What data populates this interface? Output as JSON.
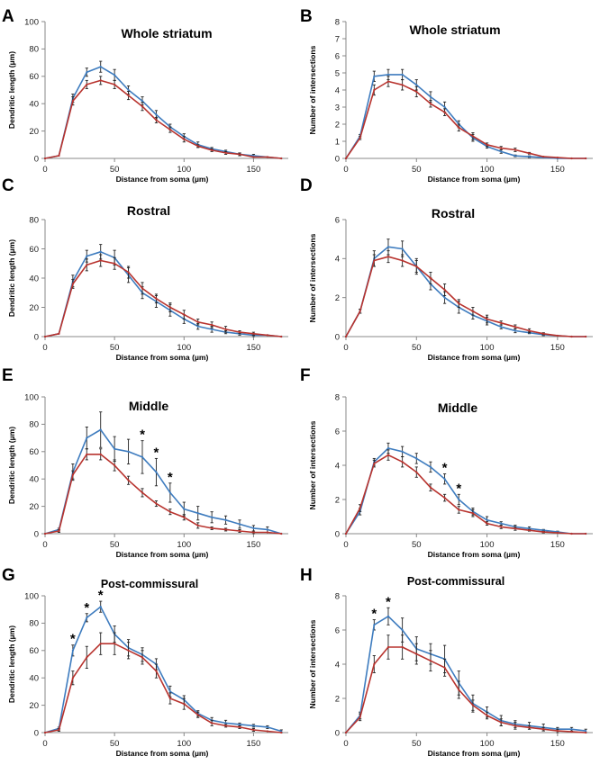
{
  "colors": {
    "blue": "#3e7cbf",
    "red": "#b8332e"
  },
  "chart_data": [
    {
      "letter": "A",
      "type": "line",
      "title": "Whole striatum",
      "xlabel": "Distance from soma (µm)",
      "ylabel": "Dendritic length (µm)",
      "xlim": [
        0,
        175
      ],
      "ylim": [
        0,
        100
      ],
      "xticks": [
        0,
        50,
        100,
        150
      ],
      "yticks": [
        0,
        20,
        40,
        60,
        80,
        100
      ],
      "x": [
        0,
        10,
        20,
        30,
        40,
        50,
        60,
        70,
        80,
        90,
        100,
        110,
        120,
        130,
        140,
        150,
        160,
        170
      ],
      "series": [
        {
          "name": "blue",
          "values": [
            0,
            2,
            44,
            63,
            67,
            61,
            50,
            42,
            32,
            23,
            16,
            10,
            7,
            5,
            3,
            2,
            1,
            0
          ],
          "errors": [
            0,
            0,
            3,
            3,
            4,
            4,
            3,
            3,
            3,
            2,
            2,
            2,
            1,
            1,
            1,
            1,
            0,
            0
          ]
        },
        {
          "name": "red",
          "values": [
            0,
            2,
            42,
            54,
            57,
            54,
            46,
            38,
            28,
            21,
            14,
            9,
            6,
            4,
            3,
            1,
            1,
            0
          ],
          "errors": [
            0,
            0,
            3,
            3,
            3,
            3,
            3,
            3,
            2,
            2,
            2,
            1,
            1,
            1,
            1,
            0,
            0,
            0
          ]
        }
      ],
      "stars": []
    },
    {
      "letter": "B",
      "type": "line",
      "title": "Whole  striatum",
      "xlabel": "Distance from soma (µm)",
      "ylabel": "Number of intersections",
      "xlim": [
        0,
        175
      ],
      "ylim": [
        0,
        8
      ],
      "xticks": [
        0,
        50,
        100,
        150
      ],
      "yticks": [
        0,
        1,
        2,
        3,
        4,
        5,
        6,
        7,
        8
      ],
      "x": [
        0,
        10,
        20,
        30,
        40,
        50,
        60,
        70,
        80,
        90,
        100,
        110,
        120,
        130,
        140,
        150,
        160,
        170
      ],
      "series": [
        {
          "name": "blue",
          "values": [
            0,
            1.3,
            4.8,
            4.9,
            4.9,
            4.3,
            3.6,
            3.0,
            2.0,
            1.2,
            0.7,
            0.4,
            0.15,
            0.1,
            0.05,
            0,
            0,
            0
          ],
          "errors": [
            0,
            0.1,
            0.3,
            0.3,
            0.3,
            0.3,
            0.3,
            0.3,
            0.2,
            0.2,
            0.1,
            0.1,
            0.05,
            0.05,
            0,
            0,
            0,
            0
          ]
        },
        {
          "name": "red",
          "values": [
            0,
            1.2,
            4.0,
            4.5,
            4.3,
            3.9,
            3.2,
            2.7,
            1.8,
            1.3,
            0.8,
            0.6,
            0.5,
            0.3,
            0.1,
            0.05,
            0,
            0
          ],
          "errors": [
            0,
            0.1,
            0.3,
            0.3,
            0.3,
            0.3,
            0.2,
            0.2,
            0.2,
            0.2,
            0.1,
            0.1,
            0.1,
            0.05,
            0,
            0,
            0,
            0
          ]
        }
      ],
      "stars": []
    },
    {
      "letter": "C",
      "type": "line",
      "title": "Rostral",
      "xlabel": "Distance from soma (µm)",
      "ylabel": "Dendritic length (µm)",
      "xlim": [
        0,
        175
      ],
      "ylim": [
        0,
        80
      ],
      "xticks": [
        0,
        50,
        100,
        150
      ],
      "yticks": [
        0,
        20,
        40,
        60,
        80
      ],
      "x": [
        0,
        10,
        20,
        30,
        40,
        50,
        60,
        70,
        80,
        90,
        100,
        110,
        120,
        130,
        140,
        150,
        160,
        170
      ],
      "series": [
        {
          "name": "blue",
          "values": [
            0,
            2,
            38,
            55,
            58,
            54,
            42,
            30,
            24,
            18,
            12,
            7,
            5,
            3,
            2,
            1,
            1,
            0
          ],
          "errors": [
            0,
            0,
            4,
            4,
            5,
            5,
            5,
            4,
            4,
            4,
            3,
            2,
            2,
            1,
            1,
            1,
            0,
            0
          ]
        },
        {
          "name": "red",
          "values": [
            0,
            2,
            36,
            49,
            52,
            50,
            44,
            33,
            26,
            20,
            15,
            10,
            8,
            5,
            3,
            2,
            1,
            0
          ],
          "errors": [
            0,
            0,
            3,
            4,
            4,
            4,
            4,
            4,
            3,
            3,
            3,
            2,
            2,
            2,
            1,
            1,
            0,
            0
          ]
        }
      ],
      "stars": []
    },
    {
      "letter": "D",
      "type": "line",
      "title": "Rostral",
      "xlabel": "Distance from soma (µm)",
      "ylabel": "Number of intersections",
      "xlim": [
        0,
        175
      ],
      "ylim": [
        0,
        6
      ],
      "xticks": [
        0,
        50,
        100,
        150
      ],
      "yticks": [
        0,
        2,
        4,
        6
      ],
      "x": [
        0,
        10,
        20,
        30,
        40,
        50,
        60,
        70,
        80,
        90,
        100,
        110,
        120,
        130,
        140,
        150,
        160,
        170
      ],
      "series": [
        {
          "name": "blue",
          "values": [
            0,
            1.3,
            4.0,
            4.6,
            4.5,
            3.6,
            2.7,
            2.0,
            1.5,
            1.1,
            0.8,
            0.5,
            0.3,
            0.2,
            0.1,
            0.05,
            0,
            0
          ],
          "errors": [
            0,
            0.1,
            0.4,
            0.4,
            0.4,
            0.4,
            0.3,
            0.3,
            0.3,
            0.2,
            0.2,
            0.1,
            0.1,
            0.05,
            0.05,
            0,
            0,
            0
          ]
        },
        {
          "name": "red",
          "values": [
            0,
            1.3,
            3.9,
            4.1,
            3.9,
            3.6,
            3.0,
            2.4,
            1.7,
            1.3,
            0.9,
            0.7,
            0.5,
            0.3,
            0.15,
            0.05,
            0,
            0
          ],
          "errors": [
            0,
            0.1,
            0.3,
            0.3,
            0.3,
            0.3,
            0.3,
            0.3,
            0.2,
            0.2,
            0.2,
            0.1,
            0.1,
            0.1,
            0.05,
            0,
            0,
            0
          ]
        }
      ],
      "stars": []
    },
    {
      "letter": "E",
      "type": "line",
      "title": "Middle",
      "xlabel": "Distance from soma (µm)",
      "ylabel": "Dendritic length (µm)",
      "xlim": [
        0,
        175
      ],
      "ylim": [
        0,
        100
      ],
      "xticks": [
        0,
        50,
        100,
        150
      ],
      "yticks": [
        0,
        20,
        40,
        60,
        80,
        100
      ],
      "x": [
        0,
        10,
        20,
        30,
        40,
        50,
        60,
        70,
        80,
        90,
        100,
        110,
        120,
        130,
        140,
        150,
        160,
        170
      ],
      "series": [
        {
          "name": "blue",
          "values": [
            0,
            3,
            45,
            70,
            76,
            62,
            60,
            56,
            45,
            30,
            18,
            15,
            12,
            10,
            7,
            4,
            3,
            0
          ],
          "errors": [
            0,
            1,
            6,
            8,
            13,
            9,
            9,
            12,
            10,
            7,
            5,
            5,
            4,
            3,
            3,
            2,
            2,
            0
          ]
        },
        {
          "name": "red",
          "values": [
            0,
            2,
            43,
            58,
            58,
            50,
            39,
            30,
            22,
            16,
            12,
            6,
            4,
            3,
            2,
            1,
            1,
            0
          ],
          "errors": [
            0,
            1,
            3,
            4,
            4,
            4,
            3,
            3,
            2,
            2,
            2,
            2,
            1,
            1,
            1,
            1,
            0,
            0
          ]
        }
      ],
      "stars": [
        70,
        80,
        90
      ]
    },
    {
      "letter": "F",
      "type": "line",
      "title": "Middle",
      "xlabel": "Distance from soma (µm)",
      "ylabel": "Number of intersections",
      "xlim": [
        0,
        175
      ],
      "ylim": [
        0,
        8
      ],
      "xticks": [
        0,
        50,
        100,
        150
      ],
      "yticks": [
        0,
        2,
        4,
        6,
        8
      ],
      "x": [
        0,
        10,
        20,
        30,
        40,
        50,
        60,
        70,
        80,
        90,
        100,
        110,
        120,
        130,
        140,
        150,
        160,
        170
      ],
      "series": [
        {
          "name": "blue",
          "values": [
            0,
            1.3,
            4.2,
            5.0,
            4.8,
            4.4,
            3.9,
            3.2,
            2.0,
            1.3,
            0.8,
            0.6,
            0.4,
            0.3,
            0.2,
            0.1,
            0,
            0
          ],
          "errors": [
            0,
            0.2,
            0.2,
            0.3,
            0.3,
            0.3,
            0.3,
            0.3,
            0.3,
            0.2,
            0.2,
            0.1,
            0.1,
            0.1,
            0.05,
            0.05,
            0,
            0
          ]
        },
        {
          "name": "red",
          "values": [
            0,
            1.5,
            4.1,
            4.6,
            4.2,
            3.6,
            2.7,
            2.1,
            1.4,
            1.2,
            0.6,
            0.4,
            0.3,
            0.2,
            0.1,
            0.05,
            0,
            0
          ],
          "errors": [
            0,
            0.2,
            0.2,
            0.3,
            0.3,
            0.3,
            0.2,
            0.2,
            0.2,
            0.2,
            0.1,
            0.1,
            0.1,
            0.05,
            0.05,
            0,
            0,
            0
          ]
        }
      ],
      "stars": [
        70,
        80
      ]
    },
    {
      "letter": "G",
      "type": "line",
      "title": "Post-commissural",
      "xlabel": "Distance from soma (µm)",
      "ylabel": "Dendritic length (µm)",
      "xlim": [
        0,
        175
      ],
      "ylim": [
        0,
        100
      ],
      "xticks": [
        0,
        50,
        100,
        150
      ],
      "yticks": [
        0,
        20,
        40,
        60,
        80,
        100
      ],
      "x": [
        0,
        10,
        20,
        30,
        40,
        50,
        60,
        70,
        80,
        90,
        100,
        110,
        120,
        130,
        140,
        150,
        160,
        170
      ],
      "series": [
        {
          "name": "blue",
          "values": [
            0,
            3,
            60,
            84,
            92,
            72,
            62,
            57,
            50,
            30,
            24,
            14,
            9,
            7,
            6,
            5,
            4,
            1
          ],
          "errors": [
            0,
            1,
            4,
            3,
            4,
            6,
            6,
            5,
            4,
            4,
            3,
            2,
            2,
            2,
            1,
            1,
            1,
            1
          ]
        },
        {
          "name": "red",
          "values": [
            0,
            2,
            40,
            55,
            65,
            65,
            60,
            55,
            45,
            25,
            21,
            13,
            7,
            5,
            4,
            2,
            1,
            0
          ],
          "errors": [
            0,
            1,
            5,
            8,
            8,
            8,
            6,
            5,
            5,
            4,
            4,
            2,
            2,
            1,
            1,
            1,
            0,
            0
          ]
        }
      ],
      "stars": [
        20,
        30,
        40
      ]
    },
    {
      "letter": "H",
      "type": "line",
      "title": "Post-commissural",
      "xlabel": "Distance from soma (µm)",
      "ylabel": "Number of intersections",
      "xlim": [
        0,
        175
      ],
      "ylim": [
        0,
        8
      ],
      "xticks": [
        0,
        50,
        100,
        150
      ],
      "yticks": [
        0,
        2,
        4,
        6,
        8
      ],
      "x": [
        0,
        10,
        20,
        30,
        40,
        50,
        60,
        70,
        80,
        90,
        100,
        110,
        120,
        130,
        140,
        150,
        160,
        170
      ],
      "series": [
        {
          "name": "blue",
          "values": [
            0,
            1.0,
            6.3,
            6.8,
            6.0,
            4.9,
            4.6,
            4.3,
            2.9,
            1.7,
            1.2,
            0.7,
            0.5,
            0.4,
            0.3,
            0.2,
            0.2,
            0.1
          ],
          "errors": [
            0,
            0.2,
            0.3,
            0.5,
            0.7,
            0.7,
            0.6,
            0.8,
            0.7,
            0.5,
            0.3,
            0.3,
            0.2,
            0.2,
            0.2,
            0.1,
            0.1,
            0.1
          ]
        },
        {
          "name": "red",
          "values": [
            0,
            0.9,
            4.0,
            5.0,
            5.0,
            4.6,
            4.2,
            3.8,
            2.5,
            1.6,
            1.0,
            0.6,
            0.4,
            0.3,
            0.2,
            0.1,
            0.05,
            0
          ],
          "errors": [
            0,
            0.2,
            0.5,
            0.7,
            0.7,
            0.6,
            0.6,
            0.5,
            0.5,
            0.3,
            0.2,
            0.2,
            0.2,
            0.1,
            0.1,
            0.1,
            0,
            0
          ]
        }
      ],
      "stars": [
        20,
        30
      ]
    }
  ]
}
